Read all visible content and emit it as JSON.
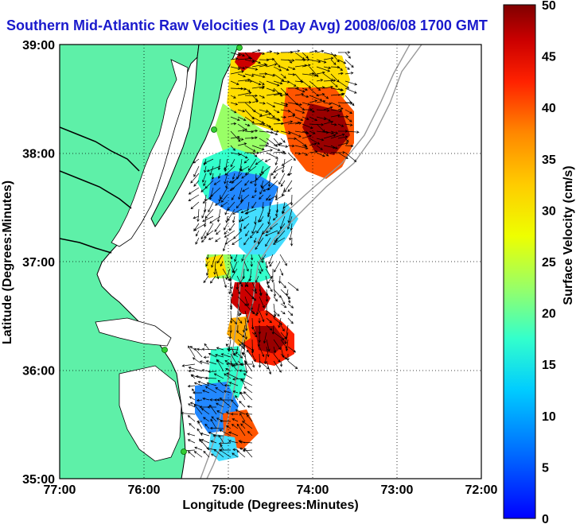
{
  "title": "Southern Mid-Atlantic Raw Velocities (1 Day Avg) 2008/06/08 1700 GMT",
  "axes": {
    "xlabel": "Longitude (Degrees:Minutes)",
    "ylabel": "Latitude (Degrees:Minutes)",
    "xticks": [
      "77:00",
      "76:00",
      "75:00",
      "74:00",
      "73:00",
      "72:00"
    ],
    "yticks": [
      "39:00",
      "38:00",
      "37:00",
      "36:00",
      "35:00"
    ]
  },
  "colorbar": {
    "label": "Surface Velocity (cm/s)",
    "ticks": [
      "0",
      "5",
      "10",
      "15",
      "20",
      "25",
      "30",
      "35",
      "40",
      "45",
      "50"
    ],
    "min": 0,
    "max": 50
  },
  "colors": {
    "land": "#5ef0a8",
    "title": "#1a1acc",
    "station": "#33cc33"
  }
}
